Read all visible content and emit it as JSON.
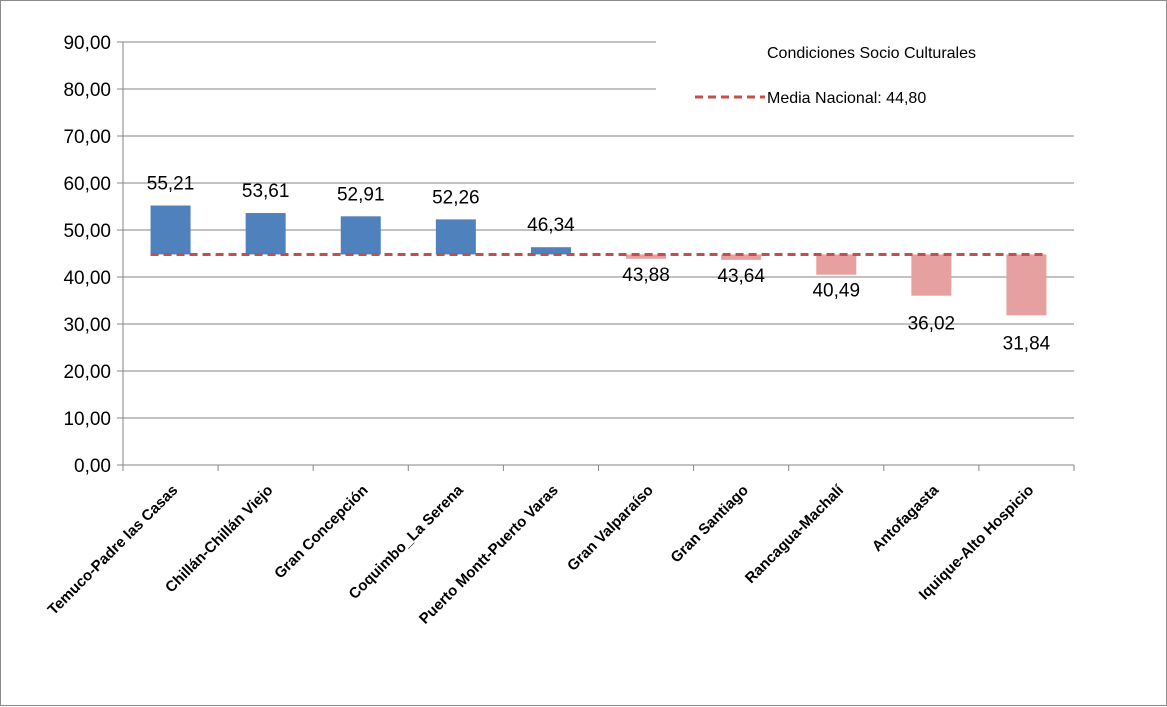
{
  "chart_data": {
    "type": "bar",
    "subtype": "deviation-from-baseline",
    "baseline": 44.8,
    "categories": [
      "Temuco-Padre las Casas",
      "Chillán-Chillán Viejo",
      "Gran Concepción",
      "Coquimbo_La Serena",
      "Puerto Montt-Puerto Varas",
      "Gran Valparaíso",
      "Gran Santiago",
      "Rancagua-Machalí",
      "Antofagasta",
      "Iquique-Alto Hospicio"
    ],
    "values": [
      55.21,
      53.61,
      52.91,
      52.26,
      46.34,
      43.88,
      43.64,
      40.49,
      36.02,
      31.84
    ],
    "value_labels": [
      "55,21",
      "53,61",
      "52,91",
      "52,26",
      "46,34",
      "43,88",
      "43,64",
      "40,49",
      "36,02",
      "31,84"
    ],
    "title": "",
    "xlabel": "",
    "ylabel": "",
    "ylim": [
      0,
      90
    ],
    "yticks": [
      0,
      10,
      20,
      30,
      40,
      50,
      60,
      70,
      80,
      90
    ],
    "ytick_labels": [
      "0,00",
      "10,00",
      "20,00",
      "30,00",
      "40,00",
      "50,00",
      "60,00",
      "70,00",
      "80,00",
      "90,00"
    ],
    "grid": true,
    "legend": {
      "placement": "top-right",
      "entries": [
        {
          "label": "Condiciones Socio Culturales",
          "swatch": "none"
        },
        {
          "label": "Media Nacional: 44,80",
          "swatch": "dashed-line"
        }
      ]
    },
    "colors": {
      "above": "#4f81bd",
      "below": "#e6a0a0",
      "baseline": "#c0504d",
      "grid": "#868686"
    }
  }
}
